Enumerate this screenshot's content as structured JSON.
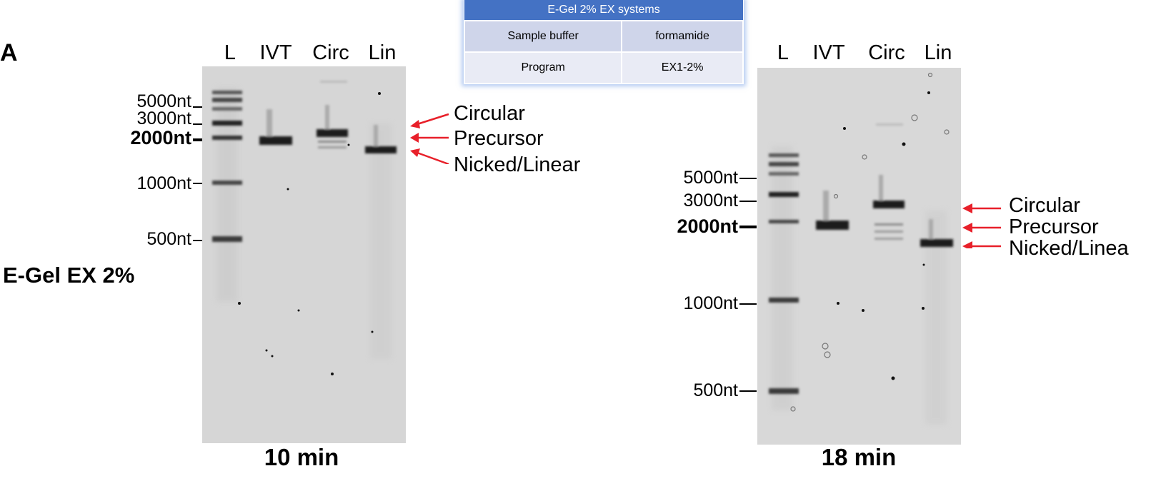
{
  "panel_letter": "A",
  "gel_title": "E-Gel EX 2%",
  "conditions_table": {
    "title": "E-Gel 2% EX systems",
    "rows": [
      {
        "label": "Sample buffer",
        "value": "formamide"
      },
      {
        "label": "Program",
        "value": "EX1-2%"
      }
    ]
  },
  "gel_left": {
    "lanes": [
      "L",
      "IVT",
      "Circ",
      "Lin"
    ],
    "markers": [
      "5000nt",
      "3000nt",
      "2000nt",
      "1000nt",
      "500nt"
    ],
    "bands": [
      "Circular",
      "Precursor",
      "Nicked/Linear"
    ],
    "time": "10 min"
  },
  "gel_right": {
    "lanes": [
      "L",
      "IVT",
      "Circ",
      "Lin"
    ],
    "markers": [
      "5000nt",
      "3000nt",
      "2000nt",
      "1000nt",
      "500nt"
    ],
    "bands": [
      "Circular",
      "Precursor",
      "Nicked/Linea"
    ],
    "time": "18 min"
  },
  "colors": {
    "arrow": "#e8202a",
    "table_header": "#4472c4"
  }
}
